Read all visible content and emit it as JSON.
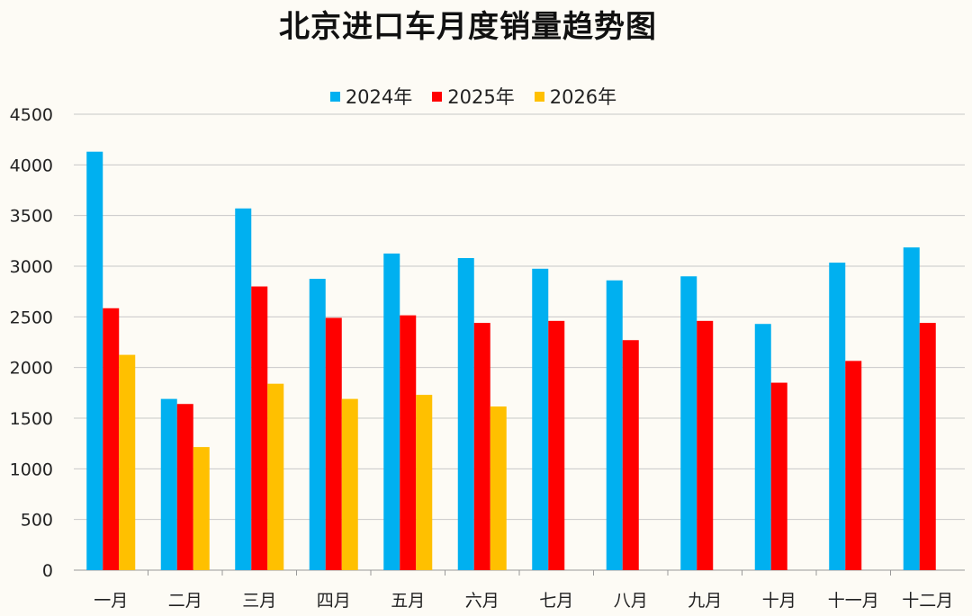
{
  "chart_data": {
    "type": "bar",
    "title": "北京进口车月度销量趋势图",
    "categories": [
      "一月",
      "二月",
      "三月",
      "四月",
      "五月",
      "六月",
      "七月",
      "八月",
      "九月",
      "十月",
      "十一月",
      "十二月"
    ],
    "series": [
      {
        "name": "2024年",
        "color": "#00b0f0",
        "values": [
          4130,
          1690,
          3570,
          2875,
          3125,
          3080,
          2975,
          2860,
          2900,
          2430,
          3035,
          3185
        ]
      },
      {
        "name": "2025年",
        "color": "#ff0000",
        "values": [
          2585,
          1640,
          2800,
          2490,
          2515,
          2440,
          2460,
          2270,
          2460,
          1850,
          2065,
          2440
        ]
      },
      {
        "name": "2026年",
        "color": "#ffc000",
        "values": [
          2125,
          1215,
          1840,
          1690,
          1730,
          1615,
          null,
          null,
          null,
          null,
          null,
          null
        ]
      }
    ],
    "ylim": [
      0,
      4500
    ],
    "yticks": [
      0,
      500,
      1000,
      1500,
      2000,
      2500,
      3000,
      3500,
      4000,
      4500
    ],
    "grid": true,
    "legend_position": "top"
  }
}
